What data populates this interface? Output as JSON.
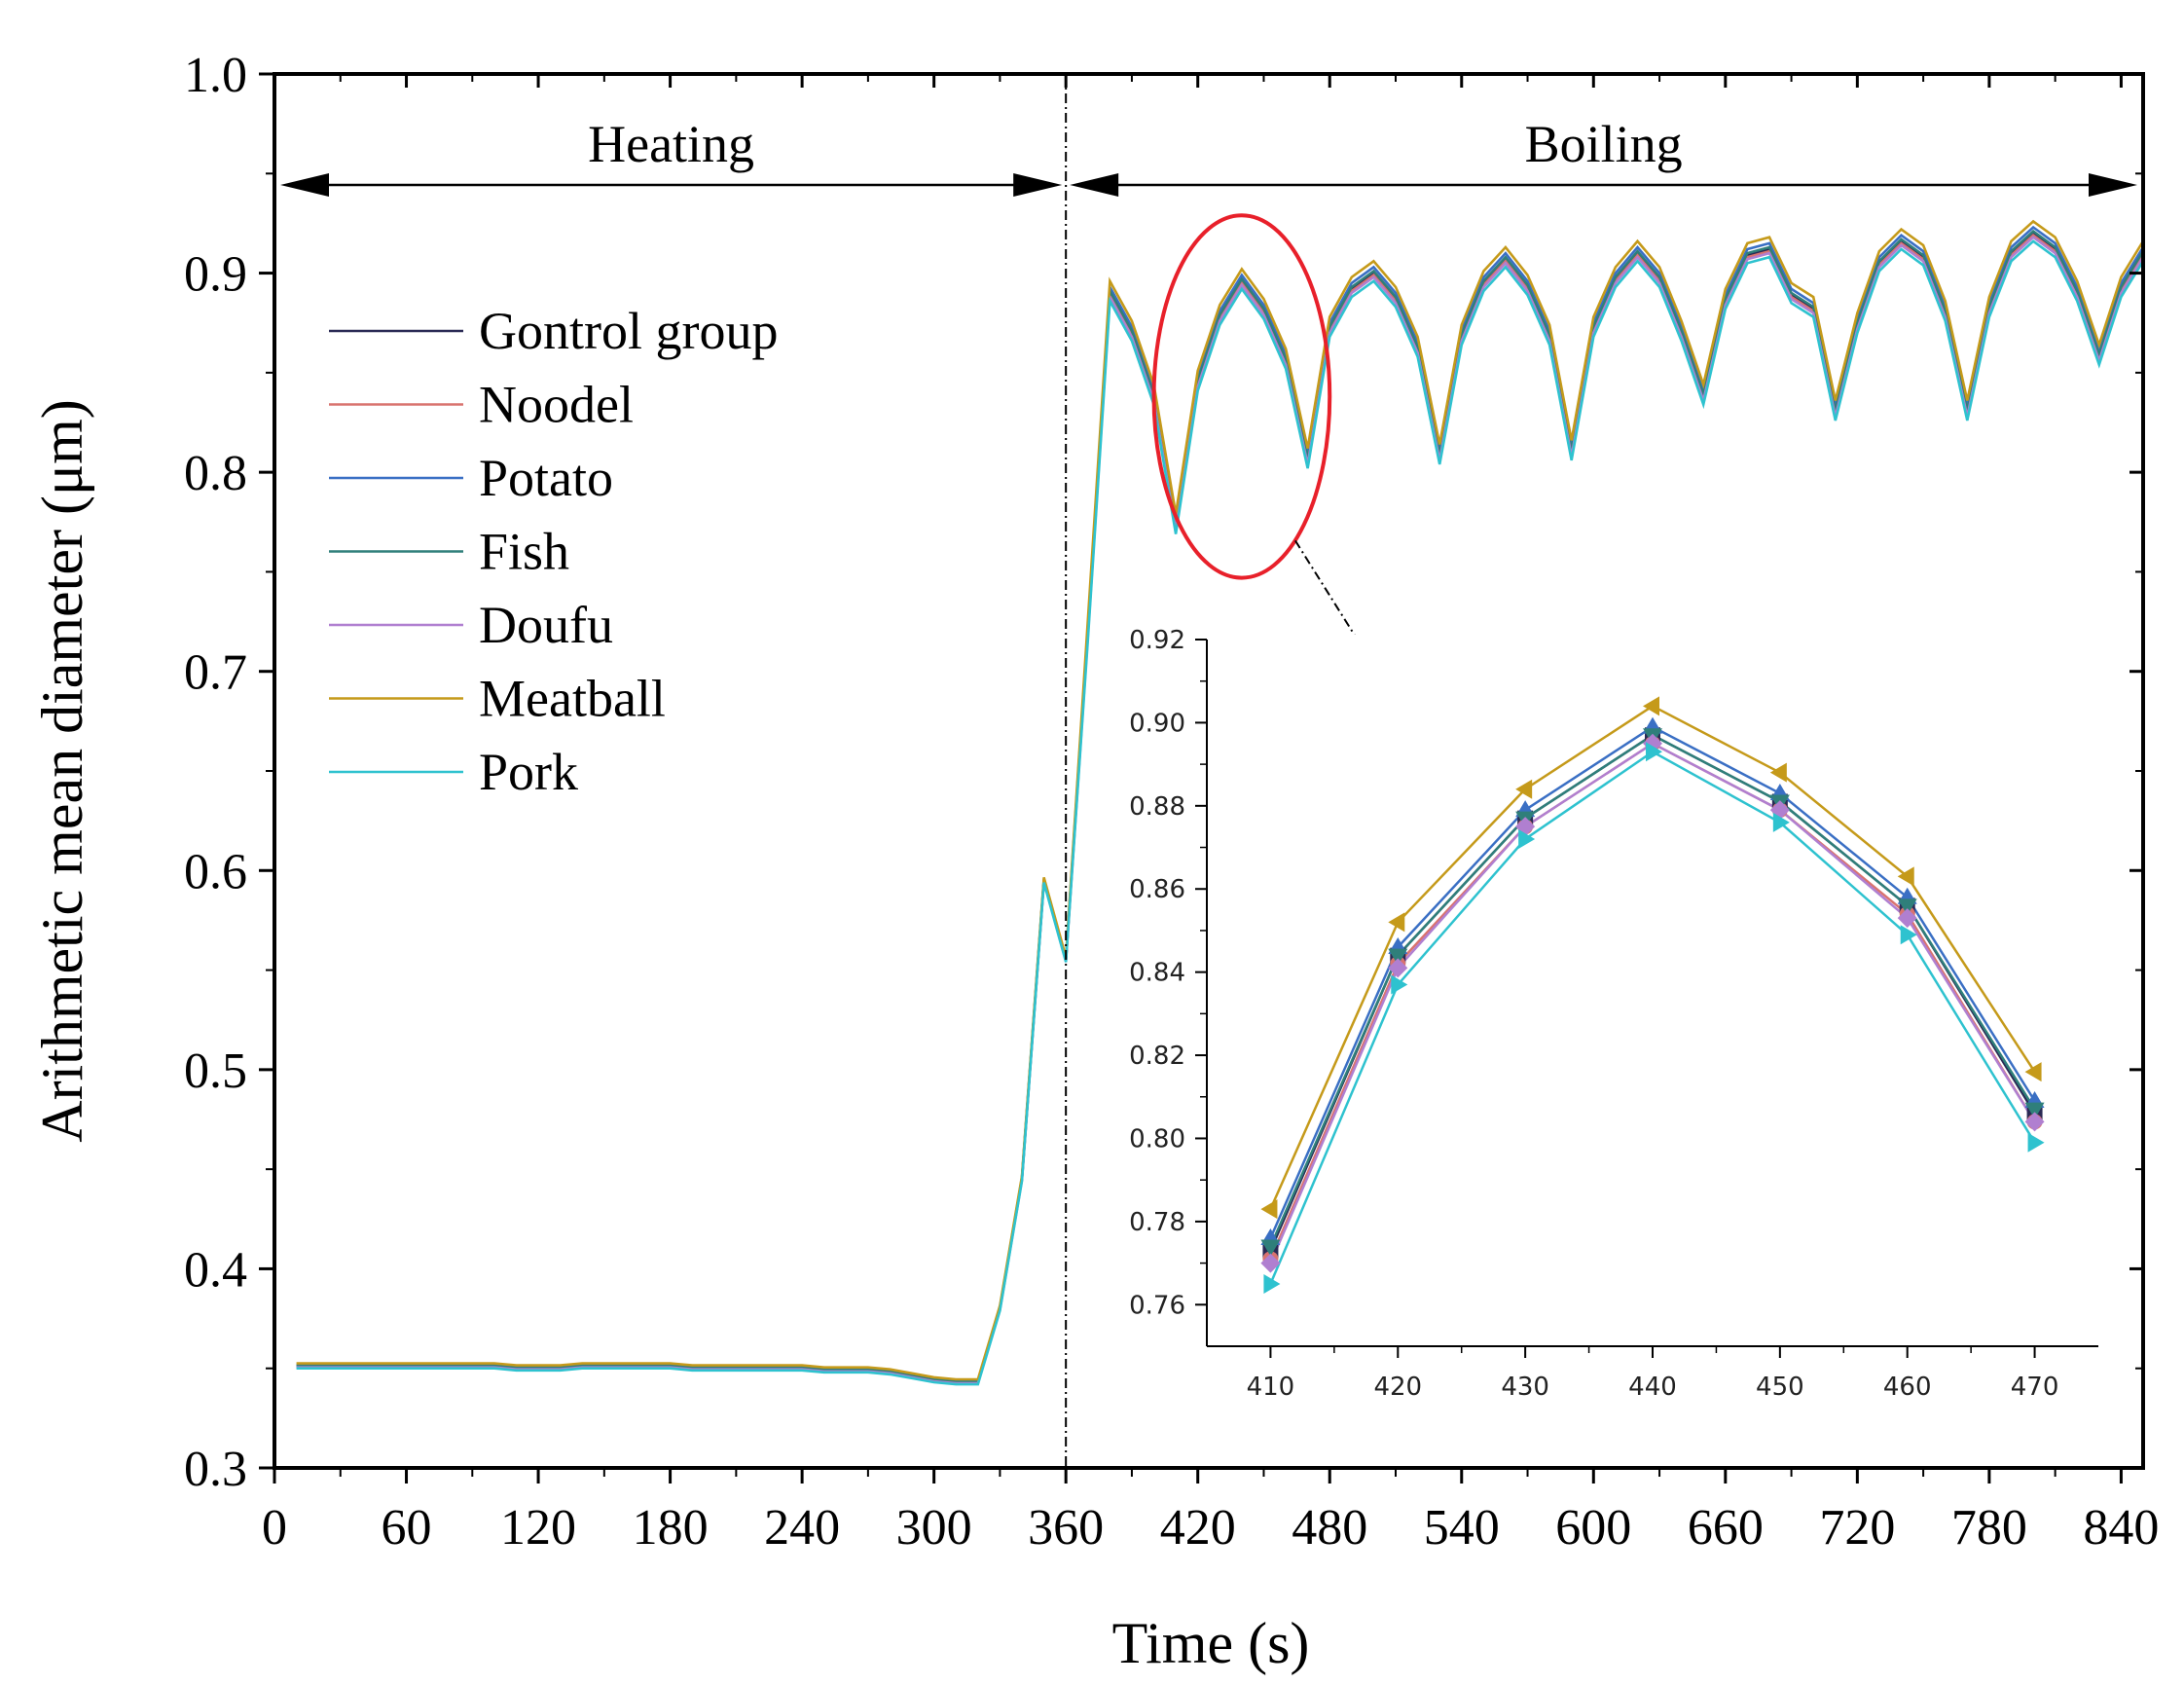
{
  "chart_data": {
    "type": "line",
    "xlabel": "Time (s)",
    "ylabel": "Arithmetic mean diameter (μm)",
    "xlim": [
      0,
      850
    ],
    "ylim": [
      0.3,
      1.0
    ],
    "x_ticks": [
      "0",
      "60",
      "120",
      "180",
      "240",
      "300",
      "360",
      "420",
      "480",
      "540",
      "600",
      "660",
      "720",
      "780",
      "840"
    ],
    "y_ticks": [
      "0.3",
      "0.4",
      "0.5",
      "0.6",
      "0.7",
      "0.8",
      "0.9",
      "1.0"
    ],
    "phases": [
      {
        "label": "Heating",
        "start": 0,
        "end": 360
      },
      {
        "label": "Boiling",
        "start": 360,
        "end": 850
      }
    ],
    "phase_divider_x": 360,
    "highlight": {
      "x_center": 440,
      "y_center": 0.838,
      "x_halfwidth": 40,
      "y_halfwidth": 0.091,
      "color": "#e8202a"
    },
    "legend_position": "upper-left",
    "x": [
      10,
      20,
      30,
      40,
      50,
      60,
      70,
      80,
      90,
      100,
      110,
      120,
      130,
      140,
      150,
      160,
      170,
      180,
      190,
      200,
      210,
      220,
      230,
      240,
      250,
      260,
      270,
      280,
      290,
      300,
      310,
      320,
      330,
      340,
      350,
      360,
      370,
      380,
      390,
      400,
      410,
      420,
      430,
      440,
      450,
      460,
      470,
      480,
      490,
      500,
      510,
      520,
      530,
      540,
      550,
      560,
      570,
      580,
      590,
      600,
      610,
      620,
      630,
      640,
      650,
      660,
      670,
      680,
      690,
      700,
      710,
      720,
      730,
      740,
      750,
      760,
      770,
      780,
      790,
      800,
      810,
      820,
      830,
      840,
      850
    ],
    "base_values": [
      0.351,
      0.351,
      0.351,
      0.351,
      0.351,
      0.351,
      0.351,
      0.351,
      0.351,
      0.351,
      0.35,
      0.35,
      0.35,
      0.351,
      0.351,
      0.351,
      0.351,
      0.351,
      0.35,
      0.35,
      0.35,
      0.35,
      0.35,
      0.35,
      0.349,
      0.349,
      0.349,
      0.348,
      0.346,
      0.344,
      0.343,
      0.343,
      0.38,
      0.445,
      0.595,
      0.555,
      0.72,
      0.89,
      0.87,
      0.838,
      0.773,
      0.845,
      0.878,
      0.896,
      0.881,
      0.856,
      0.806,
      0.872,
      0.892,
      0.9,
      0.887,
      0.862,
      0.808,
      0.868,
      0.895,
      0.907,
      0.893,
      0.868,
      0.81,
      0.872,
      0.897,
      0.91,
      0.897,
      0.87,
      0.838,
      0.886,
      0.909,
      0.912,
      0.889,
      0.882,
      0.83,
      0.874,
      0.905,
      0.916,
      0.908,
      0.88,
      0.83,
      0.882,
      0.91,
      0.92,
      0.912,
      0.89,
      0.858,
      0.892,
      0.91
    ],
    "series": [
      {
        "name": "Gontrol group",
        "color": "#2a2a55",
        "offset": 0.0
      },
      {
        "name": "Noodel",
        "color": "#d9736f",
        "offset": -0.001
      },
      {
        "name": "Potato",
        "color": "#3a6fc4",
        "offset": 0.003
      },
      {
        "name": "Fish",
        "color": "#2f7f7a",
        "offset": 0.001
      },
      {
        "name": "Doufu",
        "color": "#b07fd0",
        "offset": -0.002
      },
      {
        "name": "Meatball",
        "color": "#c59a1a",
        "offset": 0.006
      },
      {
        "name": "Pork",
        "color": "#2ec2cf",
        "offset": -0.004
      }
    ],
    "inset": {
      "type": "line",
      "x": [
        410,
        420,
        430,
        440,
        450,
        460,
        470
      ],
      "x_ticks": [
        "410",
        "420",
        "430",
        "440",
        "450",
        "460",
        "470"
      ],
      "y_ticks": [
        "0.76",
        "0.78",
        "0.80",
        "0.82",
        "0.84",
        "0.86",
        "0.88",
        "0.90",
        "0.92"
      ],
      "xlim": [
        405,
        475
      ],
      "ylim": [
        0.75,
        0.92
      ],
      "series": [
        {
          "name": "Gontrol group",
          "color": "#2a2a55",
          "marker": "square",
          "values": [
            0.773,
            0.844,
            0.877,
            0.897,
            0.881,
            0.856,
            0.806
          ]
        },
        {
          "name": "Noodel",
          "color": "#d9736f",
          "marker": "circle",
          "values": [
            0.771,
            0.842,
            0.875,
            0.895,
            0.879,
            0.854,
            0.804
          ]
        },
        {
          "name": "Potato",
          "color": "#3a6fc4",
          "marker": "triangle-up",
          "values": [
            0.776,
            0.846,
            0.879,
            0.899,
            0.883,
            0.858,
            0.809
          ]
        },
        {
          "name": "Fish",
          "color": "#2f7f7a",
          "marker": "triangle-down",
          "values": [
            0.774,
            0.844,
            0.877,
            0.897,
            0.881,
            0.856,
            0.807
          ]
        },
        {
          "name": "Doufu",
          "color": "#b07fd0",
          "marker": "diamond",
          "values": [
            0.77,
            0.841,
            0.875,
            0.895,
            0.879,
            0.853,
            0.804
          ]
        },
        {
          "name": "Meatball",
          "color": "#c59a1a",
          "marker": "triangle-left",
          "values": [
            0.783,
            0.852,
            0.884,
            0.904,
            0.888,
            0.863,
            0.816
          ]
        },
        {
          "name": "Pork",
          "color": "#2ec2cf",
          "marker": "triangle-right",
          "values": [
            0.765,
            0.837,
            0.872,
            0.893,
            0.876,
            0.849,
            0.799
          ]
        }
      ]
    }
  }
}
